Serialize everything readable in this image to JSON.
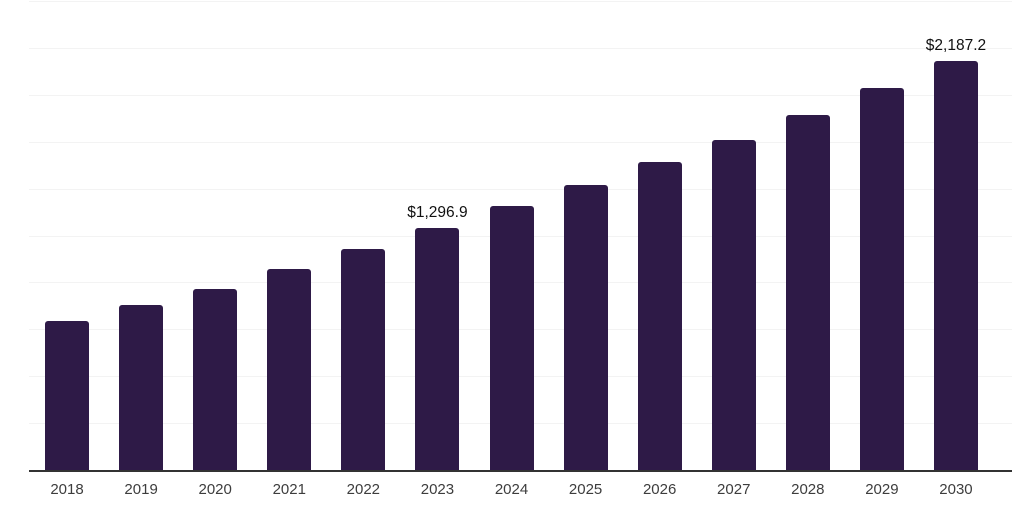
{
  "chart_data": {
    "type": "bar",
    "title": "",
    "xlabel": "",
    "ylabel": "",
    "categories": [
      "2018",
      "2019",
      "2020",
      "2021",
      "2022",
      "2023",
      "2024",
      "2025",
      "2026",
      "2027",
      "2028",
      "2029",
      "2030"
    ],
    "values": [
      798,
      886,
      971,
      1075,
      1181,
      1296.9,
      1410,
      1525,
      1647,
      1767,
      1900,
      2041,
      2187.2
    ],
    "annotations": [
      {
        "category": "2023",
        "text": "$1,296.9"
      },
      {
        "category": "2030",
        "text": "$2,187.2"
      }
    ],
    "ylim": [
      0,
      2500
    ],
    "gridline_interval": 250,
    "grid": "horizontal",
    "legend": "none",
    "colors": {
      "bar": "#2e1a47",
      "gridline": "#f3f3f3",
      "axis_line": "#333333",
      "tick_label": "#3d3d3d",
      "annotation": "#111111",
      "background": "#ffffff"
    }
  }
}
